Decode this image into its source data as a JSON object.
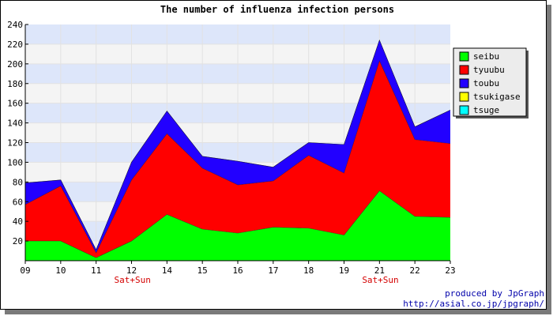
{
  "chart_data": {
    "type": "area",
    "stacked": true,
    "title": "The number of influenza infection persons",
    "categories": [
      "09",
      "10",
      "11",
      "12",
      "14",
      "15",
      "16",
      "17",
      "18",
      "19",
      "21",
      "22",
      "23"
    ],
    "weekend_label": "Sat+Sun",
    "weekend_label_positions": [
      "11",
      "19"
    ],
    "ylim": [
      0,
      240
    ],
    "ytick_step": 20,
    "grid": true,
    "band_colors": [
      "#f4f4f4",
      "#dde6fa"
    ],
    "legend_placement": "right",
    "series": [
      {
        "name": "seibu",
        "color": "#00ff00",
        "values": [
          20,
          20,
          3,
          20,
          47,
          32,
          28,
          34,
          33,
          26,
          71,
          45,
          44
        ]
      },
      {
        "name": "tyuubu",
        "color": "#ff0000",
        "values": [
          37,
          56,
          5,
          62,
          82,
          62,
          49,
          47,
          74,
          63,
          132,
          78,
          75
        ]
      },
      {
        "name": "toubu",
        "color": "#2200ff",
        "values": [
          22,
          6,
          3,
          18,
          23,
          12,
          24,
          14,
          13,
          29,
          21,
          13,
          34
        ]
      },
      {
        "name": "tsukigase",
        "color": "#ffff00",
        "values": [
          0,
          0,
          0,
          0,
          0,
          0,
          0,
          0,
          0,
          0,
          0,
          0,
          0
        ]
      },
      {
        "name": "tsuge",
        "color": "#00ffff",
        "values": [
          0,
          0,
          0,
          0,
          0,
          0,
          0,
          0,
          0,
          0,
          0,
          0,
          0
        ]
      }
    ]
  },
  "credits": {
    "line1": "produced by JpGraph",
    "line2": "http://asial.co.jp/jpgraph/"
  }
}
